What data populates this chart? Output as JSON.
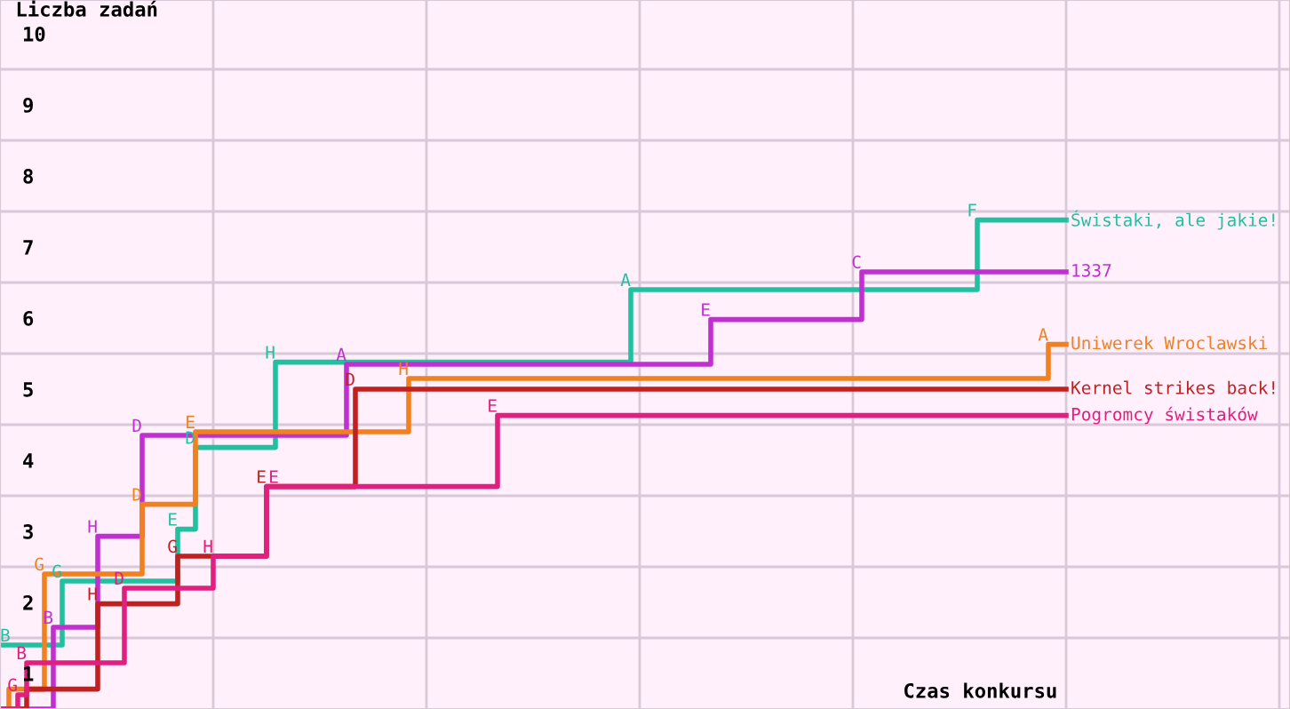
{
  "chart_data": {
    "type": "step",
    "xlabel": "Czas konkursu",
    "ylabel": "Liczba zadań",
    "categories": [
      null,
      null,
      null,
      null,
      null,
      null,
      null,
      null,
      null,
      null,
      null,
      null,
      null,
      null,
      null,
      null,
      null,
      null,
      null,
      null,
      null,
      null,
      null,
      null,
      null,
      null,
      null,
      null,
      null,
      null,
      null,
      null,
      null,
      null,
      null,
      null,
      null,
      null,
      null,
      null,
      null,
      null,
      null,
      null,
      null,
      null,
      null,
      null,
      null,
      null,
      null,
      null,
      null,
      null,
      null,
      null,
      null,
      null,
      null,
      null,
      null,
      null,
      null,
      null,
      null,
      null,
      null,
      null,
      null,
      null,
      null,
      null,
      null,
      null,
      null,
      null,
      null,
      null,
      null,
      null,
      null,
      null,
      null,
      null,
      null,
      null,
      null,
      null,
      null,
      null,
      null,
      null,
      null,
      null,
      null,
      null,
      null,
      null,
      null,
      null,
      null,
      null,
      null,
      null,
      null,
      null,
      null,
      null,
      null,
      null,
      null,
      null,
      null,
      null,
      null,
      null,
      null,
      null,
      null,
      null,
      null
    ],
    "series": [
      {
        "name": "Świstaki, ale jakie!",
        "color": "#20c0a0",
        "values": [
          1.4,
          1.4,
          1.4,
          1.4,
          1.4,
          1.4,
          1.4,
          2.3,
          2.3,
          2.3,
          2.3,
          2.3,
          2.3,
          2.3,
          2.3,
          2.3,
          2.3,
          2.3,
          2.3,
          2.3,
          3.03,
          3.03,
          4.18,
          4.18,
          4.18,
          4.18,
          4.18,
          4.18,
          4.18,
          4.18,
          4.18,
          5.38,
          5.38,
          5.38,
          5.38,
          5.38,
          5.38,
          5.38,
          5.38,
          5.38,
          5.38,
          5.38,
          5.38,
          5.38,
          5.38,
          5.38,
          5.38,
          5.38,
          5.38,
          5.38,
          5.38,
          5.38,
          5.38,
          5.38,
          5.38,
          5.38,
          5.38,
          5.38,
          5.38,
          5.38,
          5.38,
          5.38,
          5.38,
          5.38,
          5.38,
          5.38,
          5.38,
          5.38,
          5.38,
          5.38,
          5.38,
          6.4,
          6.4,
          6.4,
          6.4,
          6.4,
          6.4,
          6.4,
          6.4,
          6.4,
          6.4,
          6.4,
          6.4,
          6.4,
          6.4,
          6.4,
          6.4,
          6.4,
          6.4,
          6.4,
          6.4,
          6.4,
          6.4,
          6.4,
          6.4,
          6.4,
          6.4,
          6.4,
          6.4,
          6.4,
          6.4,
          6.4,
          6.4,
          6.4,
          6.4,
          6.4,
          6.4,
          6.4,
          6.4,
          6.4,
          7.38,
          7.38,
          7.38,
          7.38,
          7.38,
          7.38,
          7.38,
          7.38,
          7.38,
          7.38,
          7.38
        ],
        "value_labels": [
          "B",
          null,
          null,
          null,
          null,
          null,
          null,
          "G",
          null,
          null,
          null,
          null,
          null,
          null,
          null,
          null,
          null,
          null,
          null,
          null,
          "E",
          null,
          "D",
          null,
          null,
          null,
          null,
          null,
          null,
          null,
          null,
          "H",
          null,
          null,
          null,
          null,
          null,
          null,
          null,
          null,
          null,
          null,
          null,
          null,
          null,
          null,
          null,
          null,
          null,
          null,
          null,
          null,
          null,
          null,
          null,
          null,
          null,
          null,
          null,
          null,
          null,
          null,
          null,
          null,
          null,
          null,
          null,
          null,
          null,
          null,
          null,
          "A",
          null,
          null,
          null,
          null,
          null,
          null,
          null,
          null,
          null,
          null,
          null,
          null,
          null,
          null,
          null,
          null,
          null,
          null,
          null,
          null,
          null,
          null,
          null,
          null,
          null,
          null,
          null,
          null,
          null,
          null,
          null,
          null,
          null,
          null,
          null,
          null,
          null,
          null,
          "F",
          null,
          null,
          null,
          null,
          null,
          null,
          null,
          null,
          null,
          null
        ]
      },
      {
        "name": "1337",
        "color": "#c030d0",
        "values": [
          null,
          null,
          0.5,
          0.5,
          0.5,
          0.5,
          1.65,
          1.65,
          1.65,
          1.65,
          1.65,
          2.93,
          2.93,
          2.93,
          2.93,
          2.93,
          4.35,
          4.35,
          4.35,
          4.35,
          4.35,
          4.35,
          4.35,
          4.35,
          4.35,
          4.35,
          4.35,
          4.35,
          4.35,
          4.35,
          4.35,
          4.35,
          4.35,
          4.35,
          4.35,
          4.35,
          4.35,
          4.35,
          4.35,
          5.35,
          5.35,
          5.35,
          5.35,
          5.35,
          5.35,
          5.35,
          5.35,
          5.35,
          5.35,
          5.35,
          5.35,
          5.35,
          5.35,
          5.35,
          5.35,
          5.35,
          5.35,
          5.35,
          5.35,
          5.35,
          5.35,
          5.35,
          5.35,
          5.35,
          5.35,
          5.35,
          5.35,
          5.35,
          5.35,
          5.35,
          5.35,
          5.35,
          5.35,
          5.35,
          5.35,
          5.35,
          5.35,
          5.35,
          5.35,
          5.35,
          5.98,
          5.98,
          5.98,
          5.98,
          5.98,
          5.98,
          5.98,
          5.98,
          5.98,
          5.98,
          5.98,
          5.98,
          5.98,
          5.98,
          5.98,
          5.98,
          5.98,
          6.65,
          6.65,
          6.65,
          6.65,
          6.65,
          6.65,
          6.65,
          6.65,
          6.65,
          6.65,
          6.65,
          6.65,
          6.65,
          6.65,
          6.65,
          6.65,
          6.65,
          6.65,
          6.65,
          6.65,
          6.65,
          6.65,
          6.65,
          6.65
        ],
        "value_labels": [
          null,
          null,
          null,
          null,
          null,
          null,
          "B",
          null,
          null,
          null,
          null,
          "H",
          null,
          null,
          null,
          null,
          "D",
          null,
          null,
          null,
          null,
          null,
          null,
          null,
          null,
          null,
          null,
          null,
          null,
          null,
          null,
          null,
          null,
          null,
          null,
          null,
          null,
          null,
          null,
          "A",
          null,
          null,
          null,
          null,
          null,
          null,
          null,
          null,
          null,
          null,
          null,
          null,
          null,
          null,
          null,
          null,
          null,
          null,
          null,
          null,
          null,
          null,
          null,
          null,
          null,
          null,
          null,
          null,
          null,
          null,
          null,
          null,
          null,
          null,
          null,
          null,
          null,
          null,
          null,
          null,
          "E",
          null,
          null,
          null,
          null,
          null,
          null,
          null,
          null,
          null,
          null,
          null,
          null,
          null,
          null,
          null,
          null,
          "C",
          null,
          null,
          null,
          null,
          null,
          null,
          null,
          null,
          null,
          null,
          null,
          null,
          null,
          null,
          null,
          null,
          null,
          null,
          null,
          null,
          null,
          null,
          null
        ]
      },
      {
        "name": "Uniwerek Wroclawski",
        "color": "#f08020",
        "values": [
          0.5,
          0.78,
          0.78,
          0.78,
          0.78,
          2.4,
          2.4,
          2.4,
          2.4,
          2.4,
          2.4,
          2.4,
          2.4,
          2.4,
          2.4,
          2.4,
          3.38,
          3.38,
          3.38,
          3.38,
          3.38,
          3.38,
          4.4,
          4.4,
          4.4,
          4.4,
          4.4,
          4.4,
          4.4,
          4.4,
          4.4,
          4.4,
          4.4,
          4.4,
          4.4,
          4.4,
          4.4,
          4.4,
          4.4,
          4.4,
          4.4,
          4.4,
          4.4,
          4.4,
          4.4,
          4.4,
          5.15,
          5.15,
          5.15,
          5.15,
          5.15,
          5.15,
          5.15,
          5.15,
          5.15,
          5.15,
          5.15,
          5.15,
          5.15,
          5.15,
          5.15,
          5.15,
          5.15,
          5.15,
          5.15,
          5.15,
          5.15,
          5.15,
          5.15,
          5.15,
          5.15,
          5.15,
          5.15,
          5.15,
          5.15,
          5.15,
          5.15,
          5.15,
          5.15,
          5.15,
          5.15,
          5.15,
          5.15,
          5.15,
          5.15,
          5.15,
          5.15,
          5.15,
          5.15,
          5.15,
          5.15,
          5.15,
          5.15,
          5.15,
          5.15,
          5.15,
          5.15,
          5.15,
          5.15,
          5.15,
          5.15,
          5.15,
          5.15,
          5.15,
          5.15,
          5.15,
          5.15,
          5.15,
          5.15,
          5.15,
          5.15,
          5.15,
          5.15,
          5.15,
          5.15,
          5.15,
          5.15,
          5.15,
          5.63,
          5.63,
          5.63
        ],
        "value_labels": [
          null,
          null,
          null,
          null,
          null,
          "G",
          null,
          null,
          null,
          null,
          null,
          null,
          null,
          null,
          null,
          null,
          "D",
          null,
          null,
          null,
          null,
          null,
          "E",
          null,
          null,
          null,
          null,
          null,
          null,
          null,
          null,
          null,
          null,
          null,
          null,
          null,
          null,
          null,
          null,
          null,
          null,
          null,
          null,
          null,
          null,
          null,
          "H",
          null,
          null,
          null,
          null,
          null,
          null,
          null,
          null,
          null,
          null,
          null,
          null,
          null,
          null,
          null,
          null,
          null,
          null,
          null,
          null,
          null,
          null,
          null,
          null,
          null,
          null,
          null,
          null,
          null,
          null,
          null,
          null,
          null,
          null,
          null,
          null,
          null,
          null,
          null,
          null,
          null,
          null,
          null,
          null,
          null,
          null,
          null,
          null,
          null,
          null,
          null,
          null,
          null,
          null,
          null,
          null,
          null,
          null,
          null,
          null,
          null,
          null,
          null,
          null,
          null,
          null,
          null,
          null,
          null,
          null,
          null,
          "A",
          null,
          null
        ]
      },
      {
        "name": "Kernel strikes back!",
        "color": "#c02020",
        "values": [
          0.5,
          0.5,
          0.5,
          0.78,
          0.78,
          0.78,
          0.78,
          0.78,
          0.78,
          0.78,
          0.78,
          1.98,
          1.98,
          1.98,
          1.98,
          1.98,
          1.98,
          1.98,
          1.98,
          1.98,
          2.65,
          2.65,
          2.65,
          2.65,
          2.65,
          2.65,
          2.65,
          2.65,
          2.65,
          2.65,
          3.63,
          3.63,
          3.63,
          3.63,
          3.63,
          3.63,
          3.63,
          3.63,
          3.63,
          3.63,
          5.0,
          5.0,
          5.0,
          5.0,
          5.0,
          5.0,
          5.0,
          5.0,
          5.0,
          5.0,
          5.0,
          5.0,
          5.0,
          5.0,
          5.0,
          5.0,
          5.0,
          5.0,
          5.0,
          5.0,
          5.0,
          5.0,
          5.0,
          5.0,
          5.0,
          5.0,
          5.0,
          5.0,
          5.0,
          5.0,
          5.0,
          5.0,
          5.0,
          5.0,
          5.0,
          5.0,
          5.0,
          5.0,
          5.0,
          5.0,
          5.0,
          5.0,
          5.0,
          5.0,
          5.0,
          5.0,
          5.0,
          5.0,
          5.0,
          5.0,
          5.0,
          5.0,
          5.0,
          5.0,
          5.0,
          5.0,
          5.0,
          5.0,
          5.0,
          5.0,
          5.0,
          5.0,
          5.0,
          5.0,
          5.0,
          5.0,
          5.0,
          5.0,
          5.0,
          5.0,
          5.0,
          5.0,
          5.0,
          5.0,
          5.0,
          5.0,
          5.0,
          5.0,
          5.0,
          5.0,
          5.0
        ],
        "value_labels": [
          null,
          null,
          null,
          null,
          null,
          null,
          null,
          null,
          null,
          null,
          null,
          "H",
          null,
          null,
          null,
          null,
          null,
          null,
          null,
          null,
          "G",
          null,
          null,
          null,
          null,
          null,
          null,
          null,
          null,
          null,
          "E",
          null,
          null,
          null,
          null,
          null,
          null,
          null,
          null,
          null,
          "D",
          null,
          null,
          null,
          null,
          null,
          null,
          null,
          null,
          null,
          null,
          null,
          null,
          null,
          null,
          null,
          null,
          null,
          null,
          null,
          null,
          null,
          null,
          null,
          null,
          null,
          null,
          null,
          null,
          null,
          null,
          null,
          null,
          null,
          null,
          null,
          null,
          null,
          null,
          null,
          null,
          null,
          null,
          null,
          null,
          null,
          null,
          null,
          null,
          null,
          null,
          null,
          null,
          null,
          null,
          null,
          null,
          null,
          null,
          null,
          null,
          null,
          null,
          null,
          null,
          null,
          null,
          null,
          null,
          null,
          null,
          null,
          null,
          null,
          null,
          null,
          null,
          null,
          null,
          null,
          null
        ]
      },
      {
        "name": "Pogromcy świstaków",
        "color": "#e02080",
        "values": [
          0.5,
          0.5,
          0.7,
          1.15,
          1.15,
          1.15,
          1.15,
          1.15,
          1.15,
          1.15,
          1.15,
          1.15,
          1.15,
          1.15,
          2.2,
          2.2,
          2.2,
          2.2,
          2.2,
          2.2,
          2.2,
          2.2,
          2.2,
          2.2,
          2.65,
          2.65,
          2.65,
          2.65,
          2.65,
          2.65,
          3.63,
          3.63,
          3.63,
          3.63,
          3.63,
          3.63,
          3.63,
          3.63,
          3.63,
          3.63,
          3.63,
          3.63,
          3.63,
          3.63,
          3.63,
          3.63,
          3.63,
          3.63,
          3.63,
          3.63,
          3.63,
          3.63,
          3.63,
          3.63,
          3.63,
          3.63,
          4.63,
          4.63,
          4.63,
          4.63,
          4.63,
          4.63,
          4.63,
          4.63,
          4.63,
          4.63,
          4.63,
          4.63,
          4.63,
          4.63,
          4.63,
          4.63,
          4.63,
          4.63,
          4.63,
          4.63,
          4.63,
          4.63,
          4.63,
          4.63,
          4.63,
          4.63,
          4.63,
          4.63,
          4.63,
          4.63,
          4.63,
          4.63,
          4.63,
          4.63,
          4.63,
          4.63,
          4.63,
          4.63,
          4.63,
          4.63,
          4.63,
          4.63,
          4.63,
          4.63,
          4.63,
          4.63,
          4.63,
          4.63,
          4.63,
          4.63,
          4.63,
          4.63,
          4.63,
          4.63,
          4.63,
          4.63,
          4.63,
          4.63,
          4.63,
          4.63,
          4.63,
          4.63,
          4.63,
          4.63,
          4.63
        ],
        "value_labels": [
          null,
          null,
          "G",
          "B",
          null,
          null,
          null,
          null,
          null,
          null,
          null,
          null,
          null,
          null,
          "D",
          null,
          null,
          null,
          null,
          null,
          null,
          null,
          null,
          null,
          "H",
          null,
          null,
          null,
          null,
          null,
          "E",
          null,
          null,
          null,
          null,
          null,
          null,
          null,
          null,
          null,
          null,
          null,
          null,
          null,
          null,
          null,
          null,
          null,
          null,
          null,
          null,
          null,
          null,
          null,
          null,
          null,
          "E",
          null,
          null,
          null,
          null,
          null,
          null,
          null,
          null,
          null,
          null,
          null,
          null,
          null,
          null,
          null,
          null,
          null,
          null,
          null,
          null,
          null,
          null,
          null,
          null,
          null,
          null,
          null,
          null,
          null,
          null,
          null,
          null,
          null,
          null,
          null,
          null,
          null,
          null,
          null,
          null,
          null,
          null,
          null,
          null,
          null,
          null,
          null,
          null,
          null,
          null,
          null,
          null,
          null,
          null,
          null,
          null,
          null,
          null,
          null,
          null,
          null,
          null,
          null,
          null
        ]
      }
    ],
    "ylim": [
      0.5,
      10.475
    ],
    "yticks": [
      1,
      2,
      3,
      4,
      5,
      6,
      7,
      8,
      9,
      10,
      {
        "value": 1.5,
        "label": null
      },
      {
        "value": 2.5,
        "label": null
      },
      {
        "value": 3.5,
        "label": null
      },
      {
        "value": 4.5,
        "label": null
      },
      {
        "value": 5.5,
        "label": null
      },
      {
        "value": 6.5,
        "label": null
      },
      {
        "value": 7.5,
        "label": null
      },
      {
        "value": 8.5,
        "label": null
      },
      {
        "value": 9.5,
        "label": null
      }
    ],
    "tick_labels": "y",
    "grid": true,
    "legend": "right",
    "marker": "none",
    "line_style": "solid"
  }
}
